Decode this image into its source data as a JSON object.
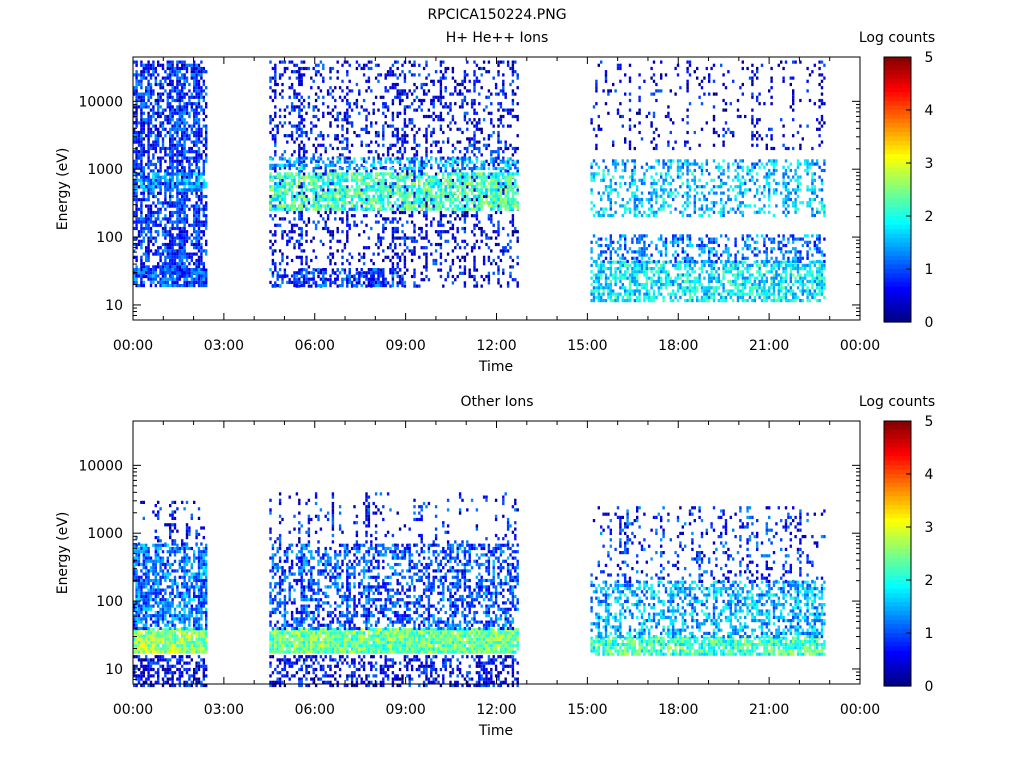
{
  "page_title": "RPCICA150224.PNG",
  "colors": {
    "axis": "#000000",
    "background": "#ffffff"
  },
  "colorbar": {
    "label": "Log counts",
    "ticks": [
      "0",
      "1",
      "2",
      "3",
      "4",
      "5"
    ],
    "colormap": "jet"
  },
  "chart_data": [
    {
      "type": "heatmap",
      "title": "H+ He++ Ions",
      "xlabel": "Time",
      "ylabel": "Energy (eV)",
      "x_ticks": [
        "00:00",
        "03:00",
        "06:00",
        "09:00",
        "12:00",
        "15:00",
        "18:00",
        "21:00",
        "00:00"
      ],
      "y_ticks": [
        "10",
        "100",
        "1000",
        "10000"
      ],
      "y_scale": "log",
      "ylim": [
        6,
        45000
      ],
      "xlim_hours": [
        0,
        24
      ],
      "clim": [
        0,
        5
      ],
      "data_segments_hours": [
        [
          0.0,
          2.4
        ],
        [
          4.5,
          12.7
        ],
        [
          15.1,
          22.8
        ]
      ],
      "bands": [
        {
          "t": [
            0.0,
            2.4
          ],
          "e": [
            25,
            40000
          ],
          "log_counts": 0.8,
          "density": 0.55
        },
        {
          "t": [
            0.0,
            2.4
          ],
          "e": [
            20,
            35
          ],
          "log_counts": 1.0,
          "density": 0.7
        },
        {
          "t": [
            0.0,
            2.4
          ],
          "e": [
            500,
            900
          ],
          "log_counts": 1.4,
          "density": 0.6
        },
        {
          "t": [
            4.5,
            12.7
          ],
          "e": [
            20,
            40000
          ],
          "log_counts": 0.6,
          "density": 0.22
        },
        {
          "t": [
            4.5,
            12.7
          ],
          "e": [
            250,
            900
          ],
          "log_counts": 2.2,
          "density": 0.65
        },
        {
          "t": [
            4.5,
            12.7
          ],
          "e": [
            1000,
            1500
          ],
          "log_counts": 1.5,
          "density": 0.35
        },
        {
          "t": [
            4.5,
            9.0
          ],
          "e": [
            20,
            35
          ],
          "log_counts": 0.9,
          "density": 0.45
        },
        {
          "t": [
            15.1,
            22.8
          ],
          "e": [
            12,
            45
          ],
          "log_counts": 1.8,
          "density": 0.6
        },
        {
          "t": [
            15.1,
            22.8
          ],
          "e": [
            45,
            110
          ],
          "log_counts": 1.2,
          "density": 0.35
        },
        {
          "t": [
            15.1,
            22.8
          ],
          "e": [
            200,
            900
          ],
          "log_counts": 1.6,
          "density": 0.3
        },
        {
          "t": [
            15.1,
            22.8
          ],
          "e": [
            1000,
            1400
          ],
          "log_counts": 1.5,
          "density": 0.35
        },
        {
          "t": [
            15.1,
            22.8
          ],
          "e": [
            2000,
            40000
          ],
          "log_counts": 0.5,
          "density": 0.08
        }
      ]
    },
    {
      "type": "heatmap",
      "title": "Other Ions",
      "xlabel": "Time",
      "ylabel": "Energy (eV)",
      "x_ticks": [
        "00:00",
        "03:00",
        "06:00",
        "09:00",
        "12:00",
        "15:00",
        "18:00",
        "21:00",
        "00:00"
      ],
      "y_ticks": [
        "10",
        "100",
        "1000",
        "10000"
      ],
      "y_scale": "log",
      "ylim": [
        6,
        45000
      ],
      "xlim_hours": [
        0,
        24
      ],
      "clim": [
        0,
        5
      ],
      "data_segments_hours": [
        [
          0.0,
          2.4
        ],
        [
          4.5,
          12.7
        ],
        [
          15.1,
          22.8
        ]
      ],
      "bands": [
        {
          "t": [
            0.0,
            2.4
          ],
          "e": [
            6,
            16
          ],
          "log_counts": 0.6,
          "density": 0.5
        },
        {
          "t": [
            0.0,
            2.4
          ],
          "e": [
            17,
            40
          ],
          "log_counts": 2.6,
          "density": 0.95
        },
        {
          "t": [
            0.0,
            2.4
          ],
          "e": [
            40,
            700
          ],
          "log_counts": 1.2,
          "density": 0.6
        },
        {
          "t": [
            0.0,
            2.4
          ],
          "e": [
            700,
            3000
          ],
          "log_counts": 0.7,
          "density": 0.08
        },
        {
          "t": [
            4.5,
            12.7
          ],
          "e": [
            6,
            16
          ],
          "log_counts": 0.6,
          "density": 0.4
        },
        {
          "t": [
            4.5,
            12.7
          ],
          "e": [
            17,
            40
          ],
          "log_counts": 2.4,
          "density": 0.95
        },
        {
          "t": [
            4.5,
            12.7
          ],
          "e": [
            40,
            700
          ],
          "log_counts": 1.0,
          "density": 0.45
        },
        {
          "t": [
            4.5,
            12.7
          ],
          "e": [
            700,
            4000
          ],
          "log_counts": 0.7,
          "density": 0.06
        },
        {
          "t": [
            15.1,
            22.8
          ],
          "e": [
            17,
            30
          ],
          "log_counts": 2.2,
          "density": 0.8
        },
        {
          "t": [
            15.1,
            22.8
          ],
          "e": [
            30,
            200
          ],
          "log_counts": 1.5,
          "density": 0.45
        },
        {
          "t": [
            15.1,
            22.8
          ],
          "e": [
            200,
            2500
          ],
          "log_counts": 0.8,
          "density": 0.12
        }
      ]
    }
  ]
}
